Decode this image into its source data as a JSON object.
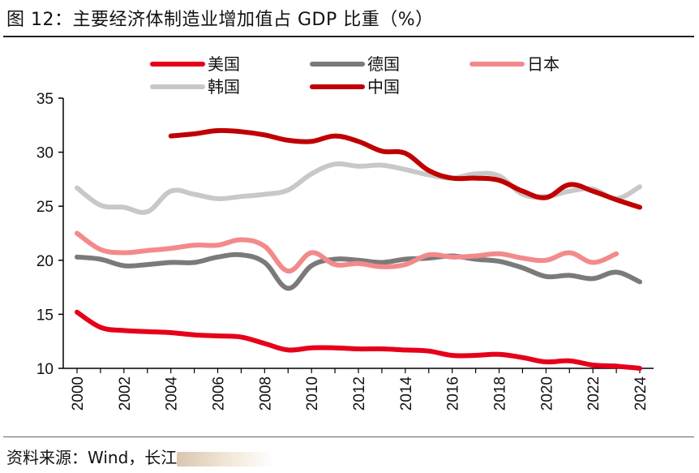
{
  "page": {
    "title": "图  12：主要经济体制造业增加值占 GDP 比重（%）",
    "source_prefix": "资料来源：Wind，长江"
  },
  "chart_data": {
    "type": "line",
    "title": "主要经济体制造业增加值占 GDP 比重（%）",
    "xlabel": "",
    "ylabel": "",
    "ylim": [
      10,
      35
    ],
    "xlim": [
      2000,
      2024
    ],
    "yticks": [
      10,
      15,
      20,
      25,
      30,
      35
    ],
    "xticks": [
      2000,
      2002,
      2004,
      2006,
      2008,
      2010,
      2012,
      2014,
      2016,
      2018,
      2020,
      2022,
      2024
    ],
    "legend_position": "top",
    "series": [
      {
        "name": "美国",
        "color": "#e6001a",
        "points": [
          [
            2000,
            15.2
          ],
          [
            2001,
            13.8
          ],
          [
            2002,
            13.5
          ],
          [
            2003,
            13.4
          ],
          [
            2004,
            13.3
          ],
          [
            2005,
            13.1
          ],
          [
            2006,
            13.0
          ],
          [
            2007,
            12.9
          ],
          [
            2008,
            12.3
          ],
          [
            2009,
            11.7
          ],
          [
            2010,
            11.9
          ],
          [
            2011,
            11.9
          ],
          [
            2012,
            11.8
          ],
          [
            2013,
            11.8
          ],
          [
            2014,
            11.7
          ],
          [
            2015,
            11.6
          ],
          [
            2016,
            11.2
          ],
          [
            2017,
            11.2
          ],
          [
            2018,
            11.3
          ],
          [
            2019,
            11.0
          ],
          [
            2020,
            10.6
          ],
          [
            2021,
            10.7
          ],
          [
            2022,
            10.3
          ],
          [
            2023,
            10.2
          ],
          [
            2024,
            10.0
          ]
        ]
      },
      {
        "name": "德国",
        "color": "#7a7a7a",
        "points": [
          [
            2000,
            20.3
          ],
          [
            2001,
            20.1
          ],
          [
            2002,
            19.5
          ],
          [
            2003,
            19.6
          ],
          [
            2004,
            19.8
          ],
          [
            2005,
            19.8
          ],
          [
            2006,
            20.3
          ],
          [
            2007,
            20.5
          ],
          [
            2008,
            19.8
          ],
          [
            2009,
            17.4
          ],
          [
            2010,
            19.5
          ],
          [
            2011,
            20.1
          ],
          [
            2012,
            20.0
          ],
          [
            2013,
            19.8
          ],
          [
            2014,
            20.1
          ],
          [
            2015,
            20.2
          ],
          [
            2016,
            20.4
          ],
          [
            2017,
            20.1
          ],
          [
            2018,
            19.9
          ],
          [
            2019,
            19.3
          ],
          [
            2020,
            18.5
          ],
          [
            2021,
            18.6
          ],
          [
            2022,
            18.3
          ],
          [
            2023,
            18.9
          ],
          [
            2024,
            18.0
          ]
        ]
      },
      {
        "name": "日本",
        "color": "#f28a8c",
        "points": [
          [
            2000,
            22.5
          ],
          [
            2001,
            21.0
          ],
          [
            2002,
            20.7
          ],
          [
            2003,
            20.9
          ],
          [
            2004,
            21.1
          ],
          [
            2005,
            21.4
          ],
          [
            2006,
            21.4
          ],
          [
            2007,
            21.9
          ],
          [
            2008,
            21.3
          ],
          [
            2009,
            19.0
          ],
          [
            2010,
            20.7
          ],
          [
            2011,
            19.6
          ],
          [
            2012,
            19.7
          ],
          [
            2013,
            19.4
          ],
          [
            2014,
            19.6
          ],
          [
            2015,
            20.5
          ],
          [
            2016,
            20.3
          ],
          [
            2017,
            20.4
          ],
          [
            2018,
            20.6
          ],
          [
            2019,
            20.2
          ],
          [
            2020,
            20.0
          ],
          [
            2021,
            20.7
          ],
          [
            2022,
            19.8
          ],
          [
            2023,
            20.6
          ]
        ]
      },
      {
        "name": "韩国",
        "color": "#c8c8c8",
        "points": [
          [
            2000,
            26.7
          ],
          [
            2001,
            25.1
          ],
          [
            2002,
            24.9
          ],
          [
            2003,
            24.5
          ],
          [
            2004,
            26.4
          ],
          [
            2005,
            26.1
          ],
          [
            2006,
            25.7
          ],
          [
            2007,
            25.9
          ],
          [
            2008,
            26.1
          ],
          [
            2009,
            26.5
          ],
          [
            2010,
            28.0
          ],
          [
            2011,
            28.9
          ],
          [
            2012,
            28.7
          ],
          [
            2013,
            28.8
          ],
          [
            2014,
            28.4
          ],
          [
            2015,
            27.9
          ],
          [
            2016,
            27.6
          ],
          [
            2017,
            28.0
          ],
          [
            2018,
            27.8
          ],
          [
            2019,
            26.1
          ],
          [
            2020,
            25.9
          ],
          [
            2021,
            26.4
          ],
          [
            2022,
            26.6
          ],
          [
            2023,
            25.7
          ],
          [
            2024,
            26.8
          ]
        ]
      },
      {
        "name": "中国",
        "color": "#c00000",
        "points": [
          [
            2004,
            31.5
          ],
          [
            2005,
            31.7
          ],
          [
            2006,
            32.0
          ],
          [
            2007,
            31.9
          ],
          [
            2008,
            31.6
          ],
          [
            2009,
            31.1
          ],
          [
            2010,
            31.0
          ],
          [
            2011,
            31.5
          ],
          [
            2012,
            31.0
          ],
          [
            2013,
            30.1
          ],
          [
            2014,
            29.9
          ],
          [
            2015,
            28.3
          ],
          [
            2016,
            27.6
          ],
          [
            2017,
            27.6
          ],
          [
            2018,
            27.4
          ],
          [
            2019,
            26.4
          ],
          [
            2020,
            25.8
          ],
          [
            2021,
            27.0
          ],
          [
            2022,
            26.4
          ],
          [
            2023,
            25.6
          ],
          [
            2024,
            24.9
          ]
        ]
      }
    ]
  }
}
